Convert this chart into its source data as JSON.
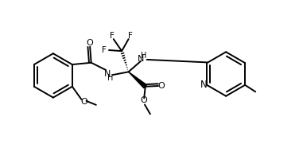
{
  "bg": "#ffffff",
  "lc": "#000000",
  "lw": 1.4,
  "fs": 7.5,
  "xlim": [
    0.3,
    9.7
  ],
  "ylim": [
    0.2,
    5.0
  ],
  "figw": 3.76,
  "figh": 1.86
}
